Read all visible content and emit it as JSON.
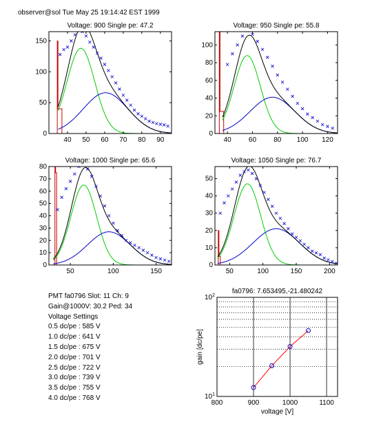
{
  "header": {
    "title": "observer@sol  Tue May 25 19:14:42 EST 1999"
  },
  "colors": {
    "data": "#0000cc",
    "gauss1": "#00cc00",
    "gauss2": "#0000cc",
    "total": "#000000",
    "pedestal": "#cc0000",
    "gainline": "#ff0000"
  },
  "chart_data": [
    {
      "type": "scatter",
      "title": "Voltage: 900 Single pe: 47.2",
      "xlim": [
        30,
        96
      ],
      "ylim": [
        0,
        165
      ],
      "xticks": [
        40,
        50,
        60,
        70,
        80,
        90
      ],
      "yticks": [
        0,
        50,
        100,
        150
      ],
      "pedestal": {
        "x": 34.5,
        "ymax": 150,
        "x2": 37,
        "y2": 40
      },
      "gauss1": {
        "amp": 138,
        "mu": 47.2,
        "sigma": 7.5
      },
      "gauss2": {
        "amp": 66,
        "mu": 60.5,
        "sigma": 12
      },
      "data_x_range": [
        35,
        96
      ],
      "series": [
        {
          "x": [
            36,
            38,
            40,
            42,
            44,
            46,
            48,
            50,
            52,
            54,
            56,
            58,
            60,
            62,
            64,
            66,
            68,
            70,
            72,
            74,
            76,
            78,
            80,
            82,
            84,
            86,
            88,
            90,
            92,
            94
          ],
          "y": [
            128,
            136,
            140,
            150,
            160,
            170,
            165,
            158,
            148,
            140,
            130,
            122,
            112,
            102,
            92,
            82,
            72,
            62,
            54,
            46,
            38,
            32,
            28,
            24,
            20,
            18,
            16,
            15,
            14,
            12
          ]
        }
      ]
    },
    {
      "type": "scatter",
      "title": "Voltage: 950 Single pe: 55.8",
      "xlim": [
        30,
        128
      ],
      "ylim": [
        0,
        115
      ],
      "xticks": [
        40,
        60,
        80,
        100,
        120
      ],
      "yticks": [
        0,
        20,
        40,
        60,
        80,
        100
      ],
      "pedestal": {
        "x": 33.5,
        "ymax": 115,
        "x2": 37,
        "y2": 25
      },
      "gauss1": {
        "amp": 88,
        "mu": 55.8,
        "sigma": 10.5
      },
      "gauss2": {
        "amp": 41,
        "mu": 76,
        "sigma": 18
      },
      "data_x_range": [
        36,
        128
      ],
      "series": [
        {
          "x": [
            40,
            44,
            48,
            52,
            56,
            60,
            64,
            68,
            72,
            76,
            80,
            84,
            88,
            92,
            96,
            100,
            104,
            108,
            112,
            116,
            120,
            124
          ],
          "y": [
            78,
            90,
            100,
            110,
            116,
            112,
            104,
            95,
            86,
            76,
            66,
            58,
            50,
            42,
            34,
            28,
            22,
            18,
            14,
            10,
            8,
            6
          ]
        }
      ]
    },
    {
      "type": "scatter",
      "title": "Voltage: 1000 Single pe: 65.6",
      "xlim": [
        25,
        168
      ],
      "ylim": [
        0,
        80
      ],
      "xticks": [
        50,
        100,
        150
      ],
      "yticks": [
        0,
        10,
        20,
        30,
        40,
        50,
        60,
        70,
        80
      ],
      "pedestal": {
        "x": 32,
        "ymax": 80,
        "x2": 34,
        "y2": 75
      },
      "gauss1": {
        "amp": 65,
        "mu": 65.6,
        "sigma": 15
      },
      "gauss2": {
        "amp": 27,
        "mu": 95,
        "sigma": 25
      },
      "data_x_range": [
        30,
        168
      ],
      "series": [
        {
          "x": [
            35,
            40,
            45,
            50,
            55,
            60,
            65,
            70,
            75,
            80,
            85,
            90,
            95,
            100,
            105,
            110,
            115,
            120,
            125,
            130,
            135,
            140,
            145,
            150,
            155,
            160,
            165
          ],
          "y": [
            45,
            55,
            62,
            68,
            74,
            80,
            82,
            78,
            72,
            64,
            56,
            48,
            40,
            34,
            28,
            24,
            20,
            18,
            16,
            14,
            12,
            10,
            8,
            6,
            5,
            4,
            3
          ]
        }
      ]
    },
    {
      "type": "scatter",
      "title": "Voltage: 1050 Single pe: 76.7",
      "xlim": [
        28,
        212
      ],
      "ylim": [
        0,
        57
      ],
      "xticks": [
        50,
        100,
        150,
        200
      ],
      "yticks": [
        0,
        10,
        20,
        30,
        40,
        50
      ],
      "pedestal": {
        "x": 33,
        "ymax": 20,
        "x2": 36,
        "y2": 5
      },
      "gauss1": {
        "amp": 47,
        "mu": 76.7,
        "sigma": 20
      },
      "gauss2": {
        "amp": 21,
        "mu": 120,
        "sigma": 35
      },
      "data_x_range": [
        32,
        212
      ],
      "series": [
        {
          "x": [
            36,
            42,
            48,
            54,
            60,
            66,
            72,
            78,
            84,
            90,
            96,
            102,
            108,
            114,
            120,
            126,
            132,
            138,
            144,
            150,
            156,
            162,
            168,
            174,
            180,
            186,
            192,
            198,
            204,
            210
          ],
          "y": [
            30,
            36,
            40,
            44,
            48,
            52,
            54,
            55,
            53,
            50,
            46,
            42,
            38,
            34,
            30,
            27,
            24,
            21,
            18,
            16,
            14,
            12,
            10,
            8,
            7,
            6,
            4,
            3,
            2,
            1
          ]
        }
      ]
    },
    {
      "type": "line",
      "title": "fa0796: 7.653495,-21.480242",
      "xlabel": "voltage [V]",
      "ylabel": "gain [dc/pe]",
      "xlim": [
        800,
        1130
      ],
      "ylog": true,
      "ylim": [
        10,
        100
      ],
      "xticks": [
        800,
        900,
        1000,
        1100
      ],
      "ytick_labels": [
        "10^1",
        "10^2"
      ],
      "series": [
        {
          "x": [
            900,
            950,
            1000,
            1050
          ],
          "y": [
            12.3,
            20.4,
            31.9,
            46.2
          ]
        }
      ]
    }
  ],
  "info": {
    "line1": "PMT fa0796 Slot: 11 Ch: 9",
    "line2": "Gain@1000V: 30.2 Ped: 34",
    "line3": "Voltage Settings",
    "settings": [
      "0.5 dc/pe : 585 V",
      "1.0 dc/pe : 641 V",
      "1.5 dc/pe : 675 V",
      "2.0 dc/pe : 701 V",
      "2.5 dc/pe : 722 V",
      "3.0 dc/pe : 739 V",
      "3.5 dc/pe : 755 V",
      "4.0 dc/pe : 768 V"
    ]
  }
}
